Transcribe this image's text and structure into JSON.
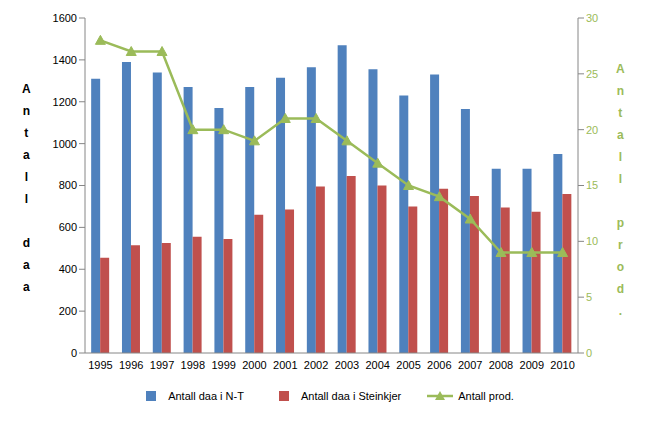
{
  "chart_data": {
    "type": "bar",
    "categories": [
      "1995",
      "1996",
      "1997",
      "1998",
      "1999",
      "2000",
      "2001",
      "2002",
      "2003",
      "2004",
      "2005",
      "2006",
      "2007",
      "2008",
      "2009",
      "2010"
    ],
    "y_label": "Antall daa",
    "y2_label": "Antall prod.",
    "series": [
      {
        "name": "Antall daa i N-T",
        "color": "#4f81bd",
        "type": "bar",
        "values": [
          1310,
          1390,
          1340,
          1270,
          1170,
          1270,
          1315,
          1365,
          1470,
          1355,
          1230,
          1330,
          1165,
          880,
          880,
          950
        ]
      },
      {
        "name": "Antall daa i Steinkjer",
        "color": "#c0504d",
        "type": "bar",
        "values": [
          455,
          515,
          525,
          555,
          545,
          660,
          685,
          795,
          845,
          800,
          700,
          785,
          750,
          695,
          675,
          760
        ]
      },
      {
        "name": "Antall prod.",
        "color": "#9bbb59",
        "type": "line",
        "marker": "triangle",
        "axis": "y2",
        "values": [
          28,
          27,
          27,
          20,
          20,
          19,
          21,
          21,
          19,
          17,
          15,
          14,
          12,
          9,
          9,
          9
        ]
      }
    ],
    "ylim": [
      0,
      1600
    ],
    "yticks": [
      0,
      200,
      400,
      600,
      800,
      1000,
      1200,
      1400,
      1600
    ],
    "y2lim": [
      0,
      30
    ],
    "y2ticks": [
      0,
      5,
      10,
      15,
      20,
      25,
      30
    ],
    "grid": false,
    "legend": "bottom"
  }
}
